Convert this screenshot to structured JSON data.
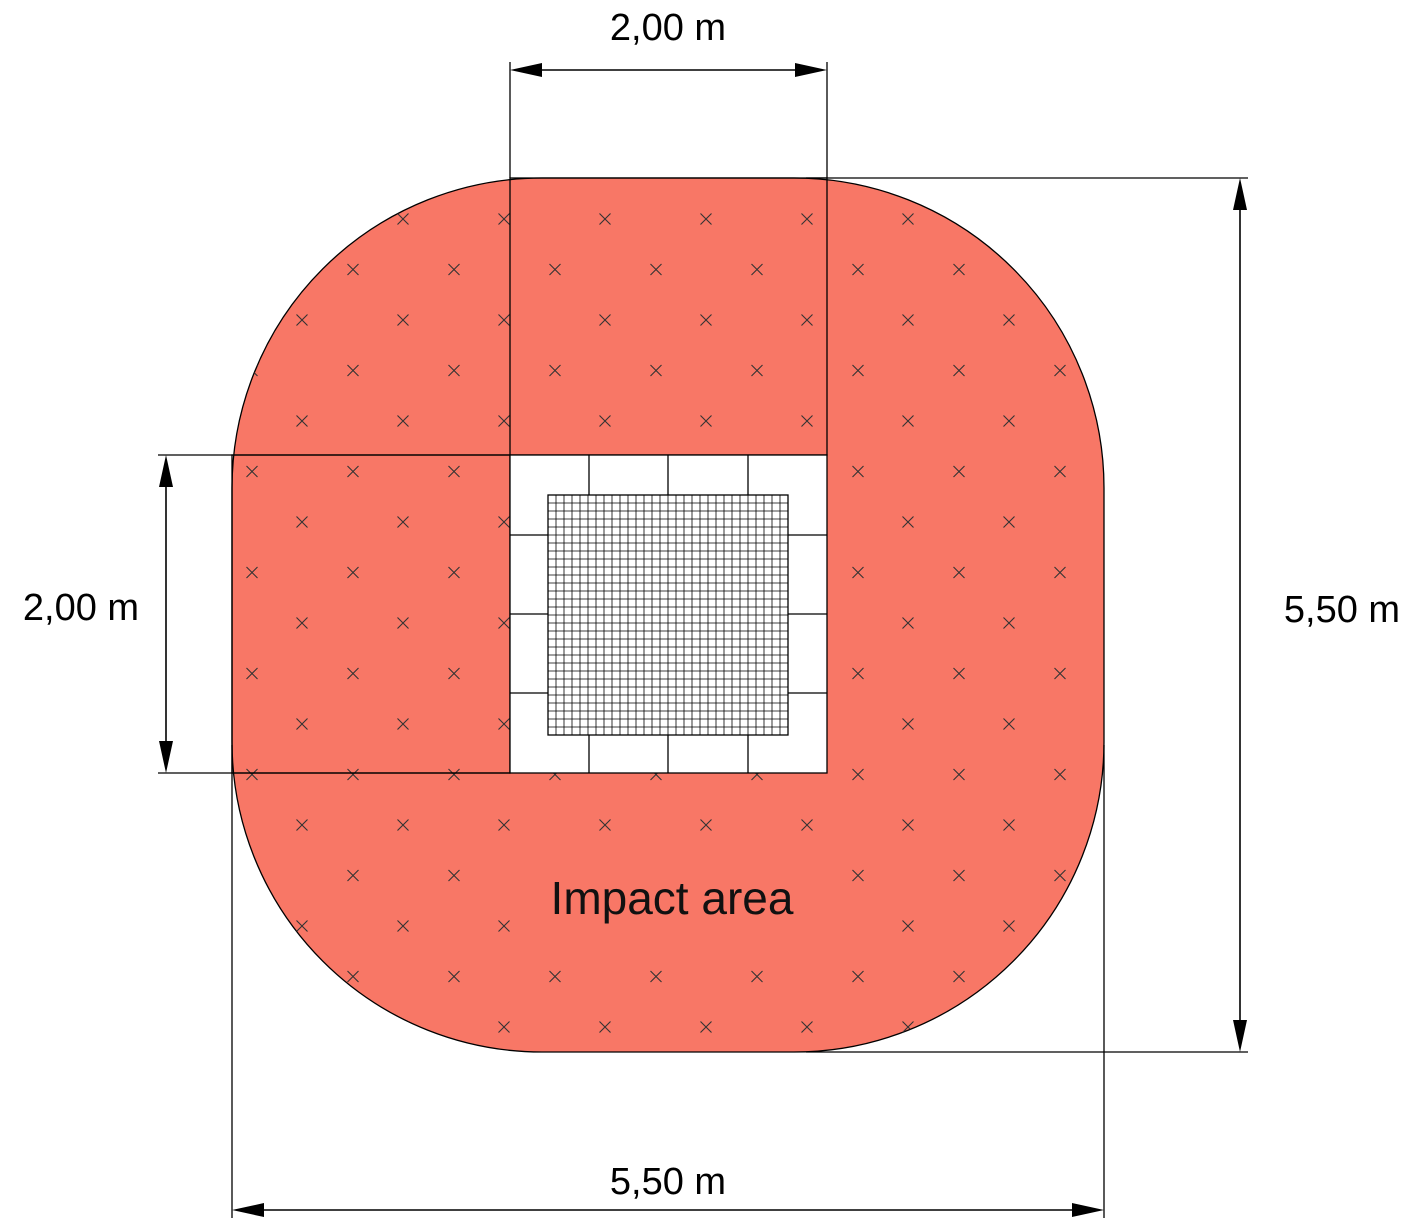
{
  "diagram": {
    "area_label": "Impact area",
    "dimensions": {
      "top_width": "2,00 m",
      "left_height": "2,00 m",
      "right_height": "5,50 m",
      "bottom_width": "5,50 m"
    },
    "colors": {
      "impact_fill": "#F87766",
      "outline": "#000000",
      "equipment_fill": "#ffffff",
      "hatch": "#333333"
    },
    "icons": {
      "hatch_mark": "x-mark",
      "arrowhead": "arrowhead"
    }
  }
}
